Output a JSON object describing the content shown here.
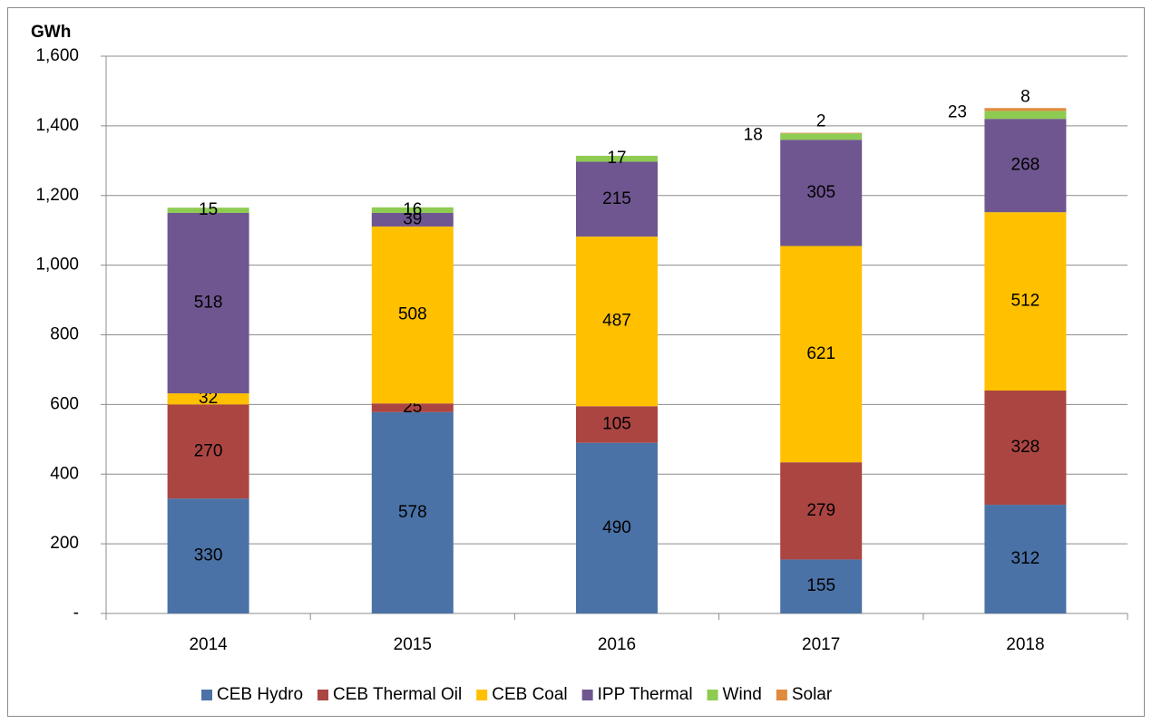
{
  "chart_data": {
    "type": "stacked-bar",
    "y_label": "GWh",
    "categories": [
      "2014",
      "2015",
      "2016",
      "2017",
      "2018"
    ],
    "series": [
      {
        "name": "CEB Hydro",
        "color": "#4a72a6",
        "values": [
          330,
          578,
          490,
          155,
          312
        ]
      },
      {
        "name": "CEB Thermal Oil",
        "color": "#ab4542",
        "values": [
          270,
          25,
          105,
          279,
          328
        ]
      },
      {
        "name": "CEB Coal",
        "color": "#ffc000",
        "values": [
          32,
          508,
          487,
          621,
          512
        ]
      },
      {
        "name": "IPP Thermal",
        "color": "#6f5690",
        "values": [
          518,
          39,
          215,
          305,
          268
        ]
      },
      {
        "name": "Wind",
        "color": "#8ecb52",
        "values": [
          15,
          16,
          17,
          18,
          23
        ]
      },
      {
        "name": "Solar",
        "color": "#e08a3e",
        "values": [
          null,
          null,
          null,
          2,
          8
        ]
      }
    ],
    "ylim": [
      0,
      1600
    ],
    "yticks": [
      {
        "value": 0,
        "label": "-"
      },
      200,
      400,
      600,
      800,
      {
        "value": 1000,
        "label": "1,000"
      },
      {
        "value": 1200,
        "label": "1,200"
      },
      {
        "value": 1400,
        "label": "1,400"
      },
      {
        "value": 1600,
        "label": "1,600"
      }
    ],
    "grid": true,
    "legend": "bottom"
  }
}
